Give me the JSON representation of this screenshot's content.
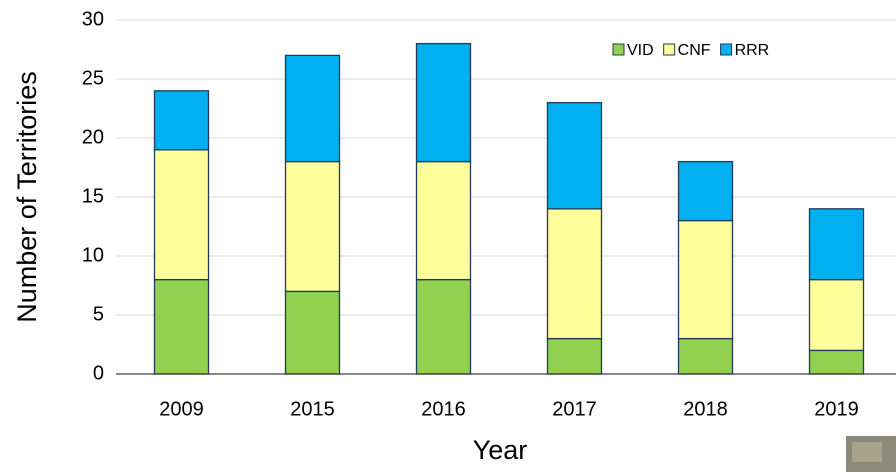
{
  "chart_data": {
    "type": "stacked-bar",
    "x_label": "Year",
    "y_label": "Number of Territories",
    "categories": [
      "2009",
      "2015",
      "2016",
      "2017",
      "2018",
      "2019"
    ],
    "series": [
      {
        "name": "VID",
        "color": "#92d050",
        "values": [
          8,
          7,
          8,
          3,
          3,
          2
        ]
      },
      {
        "name": "CNF",
        "color": "#ffff99",
        "values": [
          11,
          11,
          10,
          11,
          10,
          6
        ]
      },
      {
        "name": "RRR",
        "color": "#00b0f0",
        "values": [
          5,
          9,
          10,
          9,
          5,
          6
        ]
      }
    ],
    "ylim": [
      0,
      30
    ],
    "yticks": [
      0,
      5,
      10,
      15,
      20,
      25,
      30
    ],
    "grid": true,
    "legend": "top-right"
  }
}
